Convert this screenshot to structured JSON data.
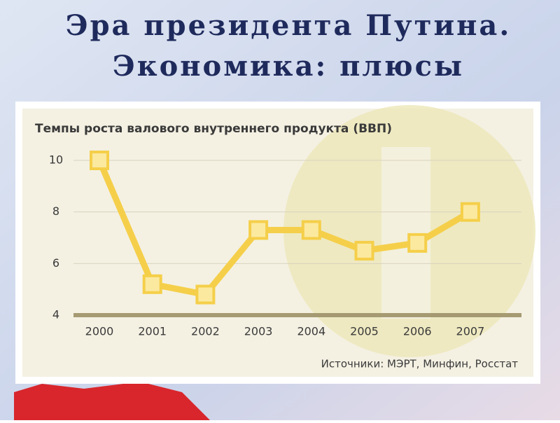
{
  "slide_title": [
    "Эра президента Путина.",
    "Экономика: плюсы"
  ],
  "chart_data": {
    "type": "line",
    "title": "Темпы роста валового внутреннего продукта (ВВП)",
    "categories": [
      "2000",
      "2001",
      "2002",
      "2003",
      "2004",
      "2005",
      "2006",
      "2007"
    ],
    "values": [
      10,
      5.2,
      4.8,
      7.3,
      7.3,
      6.5,
      6.8,
      8.0
    ],
    "color": "#f5cf4a",
    "ylim": [
      4,
      10
    ],
    "yticks": [
      4,
      6,
      8,
      10
    ],
    "grid": true,
    "source": "Источники: МЭРТ, Минфин, Росстат"
  }
}
